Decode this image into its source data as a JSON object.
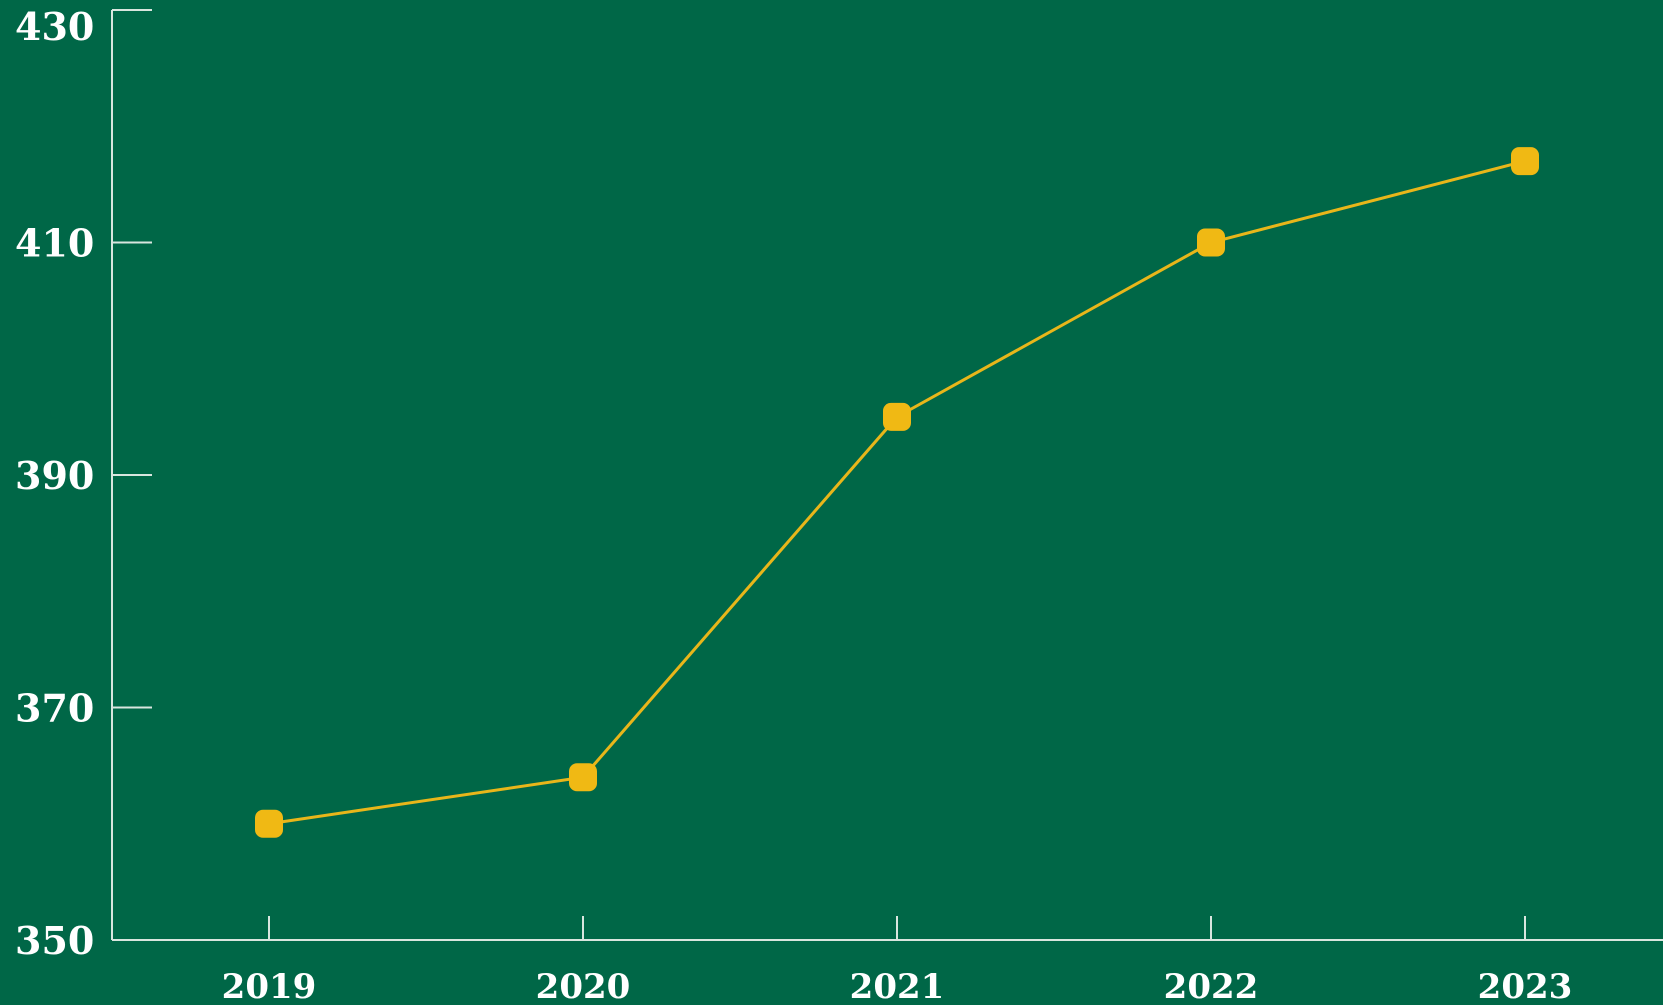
{
  "colors": {
    "background": "#006747",
    "axis": "#d9e6df",
    "line": "#e8b61a",
    "marker": "#f0b914",
    "text": "#ffffff"
  },
  "chart_data": {
    "type": "line",
    "title": "",
    "xlabel": "",
    "ylabel": "",
    "categories": [
      "2019",
      "2020",
      "2021",
      "2022",
      "2023"
    ],
    "series": [
      {
        "values": [
          360,
          364,
          395,
          410,
          417
        ]
      }
    ],
    "ylim": [
      350,
      430
    ],
    "yticks": [
      "350",
      "370",
      "390",
      "410",
      "430"
    ],
    "grid": false,
    "legend": "none",
    "marker": "rounded-square"
  }
}
